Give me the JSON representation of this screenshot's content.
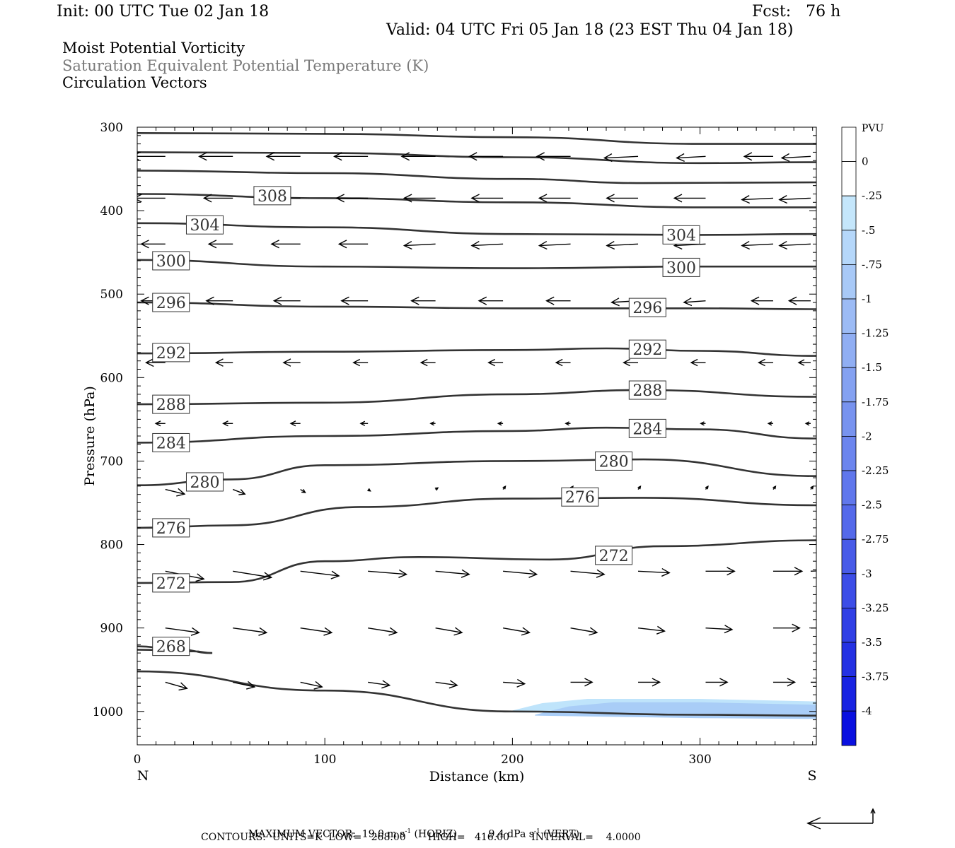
{
  "header": {
    "init": "Init: 00 UTC Tue 02 Jan 18",
    "fcst": "Fcst:   76 h",
    "valid": "Valid: 04 UTC Fri 05 Jan 18 (23 EST Thu 04 Jan 18)",
    "fields": [
      "Moist Potential Vorticity",
      "Saturation Equivalent Potential Temperature (K)",
      "Circulation Vectors"
    ]
  },
  "footer": {
    "line1_prefix": "MAXIMUM VECTOR:  19.0 m s",
    "line1_exp1": "-1",
    "line1_mid": " (HORIZ)          9.4 dPa s",
    "line1_exp2": "-1",
    "line1_suffix": " (VERT)",
    "line2": "CONTOURS:  UNITS=K  LOW=   268.00       HIGH=   416.00       INTERVAL=    4.0000"
  },
  "colors": {
    "contour": "#333333",
    "pv_shade_light": "#bfe4fb",
    "pv_shade_mid": "#a9cdf7",
    "pv_shade_dark": "#9bb8f2"
  },
  "chart_data": {
    "type": "cross-section",
    "xlabel": "Distance (km)",
    "ylabel": "Pressure (hPa)",
    "xlim": [
      0,
      362
    ],
    "ylim": [
      1040,
      300
    ],
    "x_ticks": [
      "0",
      "100",
      "200",
      "300"
    ],
    "x_tick_values": [
      0,
      100,
      200,
      300
    ],
    "y_ticks": [
      "300",
      "400",
      "500",
      "600",
      "700",
      "800",
      "900",
      "1000"
    ],
    "y_tick_values": [
      300,
      400,
      500,
      600,
      700,
      800,
      900,
      1000
    ],
    "left_end_label": "N",
    "right_end_label": "S",
    "colorbar": {
      "title": "PVU",
      "levels": [
        "0",
        "-.25",
        "-.5",
        "-.75",
        "-1",
        "-1.25",
        "-1.5",
        "-1.75",
        "-2",
        "-2.25",
        "-2.5",
        "-2.75",
        "-3",
        "-3.25",
        "-3.5",
        "-3.75",
        "-4"
      ],
      "colors": [
        "#ffffff",
        "#ffffff",
        "#c4e6fb",
        "#b5d7fa",
        "#a8c9f7",
        "#9cbbf5",
        "#90aef3",
        "#84a1f1",
        "#7893ef",
        "#6c85ee",
        "#6077ec",
        "#5469ea",
        "#485be8",
        "#3c4de7",
        "#303fe5",
        "#2431e3",
        "#1823e2",
        "#0a10e0"
      ]
    },
    "contours": [
      {
        "label": "",
        "points": [
          [
            0,
            307
          ],
          [
            100,
            308
          ],
          [
            200,
            312
          ],
          [
            300,
            320
          ],
          [
            362,
            320
          ]
        ]
      },
      {
        "label": "",
        "points": [
          [
            0,
            330
          ],
          [
            100,
            331
          ],
          [
            200,
            336
          ],
          [
            300,
            343
          ],
          [
            362,
            342
          ]
        ]
      },
      {
        "label": "",
        "points": [
          [
            0,
            352
          ],
          [
            100,
            355
          ],
          [
            200,
            362
          ],
          [
            270,
            367
          ],
          [
            362,
            366
          ]
        ]
      },
      {
        "label": "308",
        "points": [
          [
            0,
            380
          ],
          [
            100,
            385
          ],
          [
            200,
            390
          ],
          [
            300,
            396
          ],
          [
            362,
            396
          ]
        ]
      },
      {
        "label": "304",
        "points": [
          [
            0,
            415
          ],
          [
            100,
            420
          ],
          [
            200,
            428
          ],
          [
            300,
            429
          ],
          [
            362,
            428
          ]
        ]
      },
      {
        "label": "300",
        "points": [
          [
            0,
            459
          ],
          [
            100,
            467
          ],
          [
            200,
            469
          ],
          [
            300,
            467
          ],
          [
            362,
            467
          ]
        ]
      },
      {
        "label": "296",
        "points": [
          [
            0,
            510
          ],
          [
            100,
            515
          ],
          [
            200,
            517
          ],
          [
            300,
            517
          ],
          [
            362,
            518
          ]
        ]
      },
      {
        "label": "292",
        "points": [
          [
            0,
            571
          ],
          [
            100,
            569
          ],
          [
            200,
            567
          ],
          [
            250,
            565
          ],
          [
            300,
            568
          ],
          [
            362,
            574
          ]
        ]
      },
      {
        "label": "288",
        "points": [
          [
            0,
            632
          ],
          [
            100,
            630
          ],
          [
            200,
            620
          ],
          [
            270,
            615
          ],
          [
            362,
            623
          ]
        ]
      },
      {
        "label": "284",
        "points": [
          [
            0,
            678
          ],
          [
            100,
            670
          ],
          [
            200,
            664
          ],
          [
            250,
            660
          ],
          [
            300,
            662
          ],
          [
            362,
            673
          ]
        ]
      },
      {
        "label": "280",
        "points": [
          [
            0,
            729
          ],
          [
            50,
            722
          ],
          [
            100,
            705
          ],
          [
            200,
            700
          ],
          [
            270,
            698
          ],
          [
            362,
            718
          ]
        ]
      },
      {
        "label": "276",
        "points": [
          [
            0,
            780
          ],
          [
            50,
            777
          ],
          [
            120,
            755
          ],
          [
            200,
            745
          ],
          [
            270,
            744
          ],
          [
            362,
            753
          ]
        ]
      },
      {
        "label": "272",
        "points": [
          [
            0,
            846
          ],
          [
            50,
            845
          ],
          [
            100,
            820
          ],
          [
            150,
            815
          ],
          [
            220,
            818
          ],
          [
            280,
            802
          ],
          [
            362,
            795
          ]
        ]
      },
      {
        "label": "268",
        "points": [
          [
            0,
            922
          ],
          [
            20,
            925
          ],
          [
            40,
            930
          ],
          [
            30,
            928
          ],
          [
            0,
            926
          ]
        ]
      },
      {
        "label": "",
        "points": [
          [
            0,
            952
          ],
          [
            100,
            975
          ],
          [
            200,
            1000
          ],
          [
            300,
            1004
          ],
          [
            362,
            1005
          ]
        ]
      }
    ],
    "contour_labels": [
      {
        "text": "308",
        "x": 72,
        "p": 382
      },
      {
        "text": "304",
        "x": 36,
        "p": 417
      },
      {
        "text": "304",
        "x": 290,
        "p": 429
      },
      {
        "text": "300",
        "x": 18,
        "p": 460
      },
      {
        "text": "300",
        "x": 290,
        "p": 468
      },
      {
        "text": "296",
        "x": 18,
        "p": 510
      },
      {
        "text": "296",
        "x": 272,
        "p": 516
      },
      {
        "text": "292",
        "x": 18,
        "p": 570
      },
      {
        "text": "292",
        "x": 272,
        "p": 566
      },
      {
        "text": "288",
        "x": 18,
        "p": 632
      },
      {
        "text": "288",
        "x": 272,
        "p": 615
      },
      {
        "text": "284",
        "x": 18,
        "p": 678
      },
      {
        "text": "284",
        "x": 272,
        "p": 661
      },
      {
        "text": "280",
        "x": 36,
        "p": 725
      },
      {
        "text": "280",
        "x": 254,
        "p": 700
      },
      {
        "text": "276",
        "x": 18,
        "p": 780
      },
      {
        "text": "276",
        "x": 236,
        "p": 743
      },
      {
        "text": "272",
        "x": 18,
        "p": 846
      },
      {
        "text": "272",
        "x": 254,
        "p": 813
      },
      {
        "text": "268",
        "x": 18,
        "p": 922
      }
    ],
    "vector_rows": [
      {
        "p": 335,
        "u": [
          -14,
          -14,
          -14,
          -14,
          -14,
          -14,
          -14,
          -14,
          -12,
          -12,
          -12
        ],
        "w": [
          0,
          0,
          0,
          0,
          0,
          0,
          0,
          1,
          1,
          0,
          1
        ]
      },
      {
        "p": 385,
        "u": [
          -13,
          -12,
          -12,
          -13,
          -13,
          -13,
          -13,
          -13,
          -13,
          -13,
          -13
        ],
        "w": [
          0,
          0,
          0,
          0,
          0,
          0,
          0,
          0,
          0,
          1,
          1
        ]
      },
      {
        "p": 440,
        "u": [
          -10,
          -10,
          -12,
          -12,
          -13,
          -13,
          -13,
          -13,
          -13,
          -13,
          -13
        ],
        "w": [
          0,
          0,
          0,
          0,
          1,
          1,
          1,
          1,
          1,
          1,
          1
        ]
      },
      {
        "p": 508,
        "u": [
          -10,
          -11,
          -11,
          -11,
          -10,
          -10,
          -10,
          -11,
          -9,
          -9,
          -9
        ],
        "w": [
          0,
          0,
          0,
          0,
          0,
          0,
          0,
          1,
          1,
          0,
          0
        ]
      },
      {
        "p": 582,
        "u": [
          -8,
          -7,
          -7,
          -6,
          -6,
          -6,
          -6,
          -6,
          -6,
          -6,
          -5
        ],
        "w": [
          0,
          0,
          0,
          0,
          0,
          0,
          0,
          0,
          0,
          0,
          0
        ]
      },
      {
        "p": 655,
        "u": [
          -4,
          -4,
          -4,
          -3,
          -2,
          -2,
          -2,
          -2,
          -2,
          -2,
          -2
        ],
        "w": [
          0,
          0,
          0,
          0,
          0,
          0,
          0,
          0,
          0,
          0,
          0
        ]
      },
      {
        "p": 734,
        "u": [
          8,
          5,
          2,
          1,
          1,
          1,
          1,
          1,
          1,
          1,
          1
        ],
        "w": [
          3,
          3,
          2,
          1,
          -1,
          -2,
          -2,
          -2,
          -2,
          -2,
          -2
        ]
      },
      {
        "p": 832,
        "u": [
          16,
          16,
          16,
          16,
          14,
          14,
          14,
          13,
          12,
          12,
          12
        ],
        "w": [
          5,
          4,
          3,
          2,
          2,
          2,
          2,
          1,
          0,
          0,
          -1
        ]
      },
      {
        "p": 900,
        "u": [
          14,
          14,
          13,
          12,
          11,
          11,
          11,
          11,
          11,
          11,
          11
        ],
        "w": [
          3,
          3,
          3,
          3,
          3,
          3,
          3,
          2,
          1,
          0,
          0
        ]
      },
      {
        "p": 965,
        "u": [
          9,
          9,
          9,
          9,
          9,
          9,
          9,
          9,
          9,
          9,
          9
        ],
        "w": [
          4,
          3,
          3,
          2,
          2,
          1,
          0,
          0,
          0,
          0,
          0
        ]
      }
    ],
    "vector_x": [
      18,
      54,
      90,
      126,
      162,
      198,
      234,
      270,
      306,
      342,
      362
    ],
    "pv_region": {
      "points": [
        [
          198,
          1000
        ],
        [
          216,
          990
        ],
        [
          240,
          985
        ],
        [
          300,
          985
        ],
        [
          362,
          988
        ],
        [
          362,
          1005
        ],
        [
          300,
          1004
        ],
        [
          198,
          1001
        ]
      ]
    }
  }
}
